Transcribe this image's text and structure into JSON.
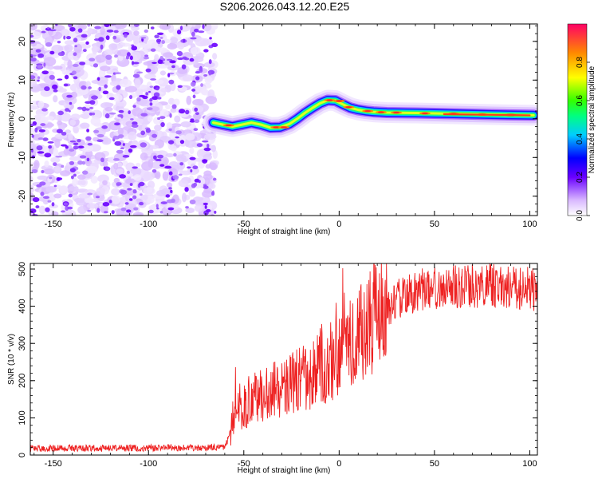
{
  "title": "S206.2026.043.12.20.E25",
  "chart_data": [
    {
      "type": "heatmap",
      "name": "spectrogram",
      "xlabel": "Height of straight line (km)",
      "ylabel": "Frequency (Hz)",
      "xlim": [
        -162,
        104
      ],
      "ylim": [
        -25,
        24.5
      ],
      "xticks": [
        -150,
        -100,
        -50,
        0,
        50,
        100
      ],
      "yticks": [
        -20,
        -10,
        0,
        10,
        20
      ],
      "noise_region_x": [
        -162,
        -65
      ],
      "ridge": {
        "x": [
          -66,
          -61,
          -56,
          -51,
          -46,
          -41,
          -36,
          -31,
          -26,
          -22,
          -18,
          -14,
          -10,
          -6,
          -2,
          2,
          6,
          10,
          14,
          18,
          25,
          40,
          60,
          80,
          102
        ],
        "y": [
          -1,
          -1.5,
          -2,
          -1.5,
          -1,
          -1.5,
          -2.3,
          -2.2,
          -1.3,
          0,
          1.5,
          2.8,
          4,
          4.8,
          4.7,
          3.7,
          2.8,
          2.3,
          2,
          1.8,
          1.6,
          1.5,
          1.3,
          1.1,
          0.9
        ]
      },
      "colorbar": {
        "label": "Normalized spectral amplitude",
        "range": [
          0,
          1
        ],
        "ticks": [
          "0.0",
          "0.2",
          "0.4",
          "0.6",
          "0.8"
        ]
      }
    },
    {
      "type": "line",
      "name": "snr",
      "xlabel": "Height of straight line (km)",
      "ylabel": "SNR (10 * v/v)",
      "xlim": [
        -162,
        104
      ],
      "ylim": [
        0,
        515
      ],
      "xticks": [
        -150,
        -100,
        -50,
        0,
        50,
        100
      ],
      "yticks": [
        0,
        100,
        200,
        300,
        400,
        500
      ],
      "color": "#ee2222",
      "trend": {
        "x": [
          -162,
          -100,
          -65,
          -60,
          -57,
          -55,
          -50,
          -40,
          -30,
          -20,
          -10,
          0,
          10,
          20,
          30,
          40,
          50,
          60,
          70,
          80,
          90,
          104
        ],
        "y": [
          18,
          19,
          20,
          22,
          60,
          120,
          140,
          160,
          185,
          200,
          230,
          270,
          320,
          370,
          420,
          440,
          450,
          450,
          455,
          455,
          450,
          445
        ]
      }
    }
  ]
}
